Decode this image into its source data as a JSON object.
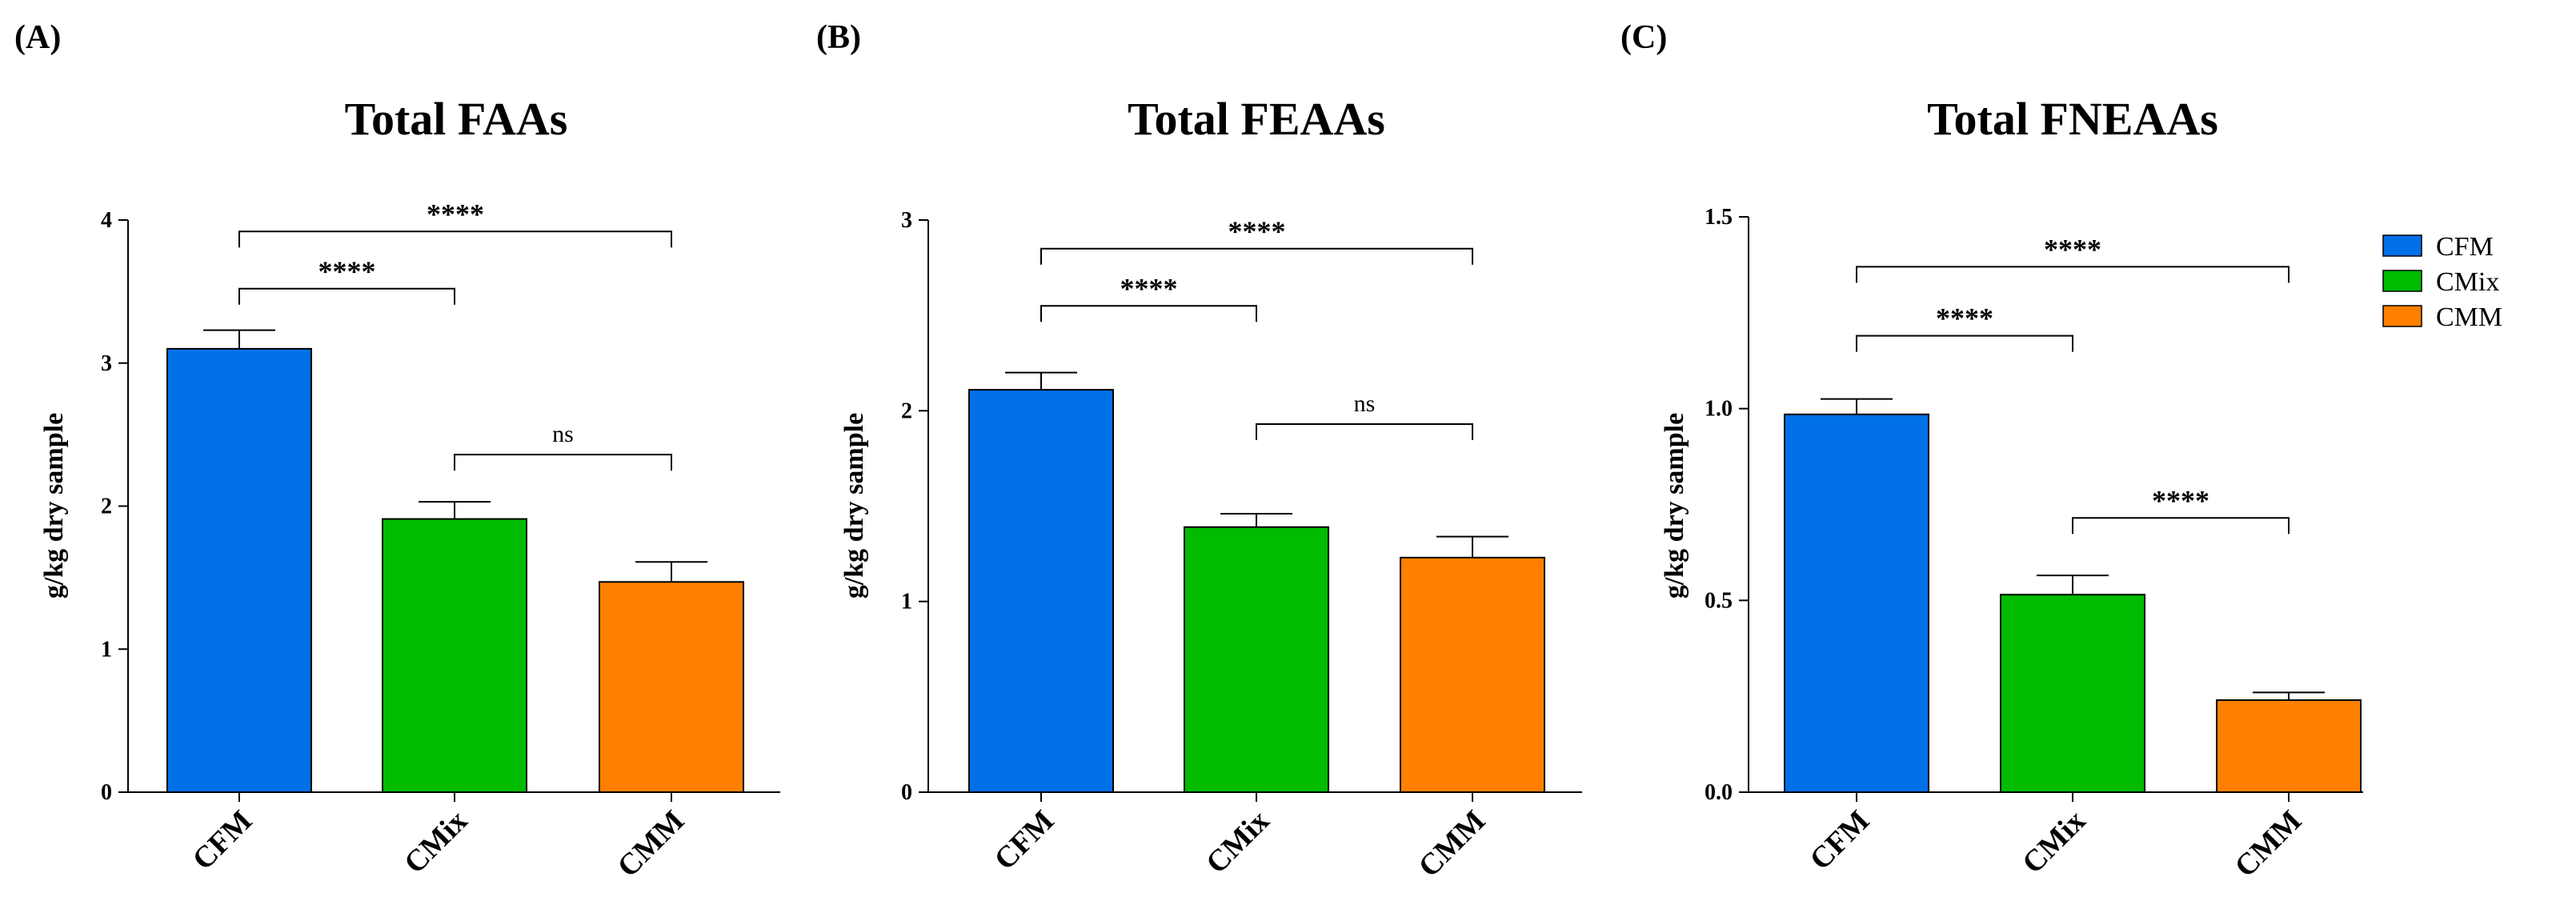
{
  "colors": {
    "CFM": "#0070e8",
    "CMix": "#00bb00",
    "CMM": "#ff8000",
    "axis": "#000000"
  },
  "legend": {
    "items": [
      {
        "label": "CFM",
        "color": "#0070e8"
      },
      {
        "label": "CMix",
        "color": "#00bb00"
      },
      {
        "label": "CMM",
        "color": "#ff8000"
      }
    ]
  },
  "chart_data": [
    {
      "type": "bar",
      "panel_label": "(A)",
      "title": "Total FAAs",
      "ylabel": "g/kg dry sample",
      "xlabel": "",
      "categories": [
        "CFM",
        "CMix",
        "CMM"
      ],
      "values": [
        3.1,
        1.91,
        1.47
      ],
      "errors": [
        0.13,
        0.12,
        0.14
      ],
      "ylim": [
        0,
        4
      ],
      "yticks": [
        "0",
        "1",
        "2",
        "3",
        "4"
      ],
      "ytick_values": [
        0,
        1,
        2,
        3,
        4
      ],
      "significance": [
        {
          "from": 0,
          "to": 2,
          "label": "****",
          "y": 3.92
        },
        {
          "from": 0,
          "to": 1,
          "label": "****",
          "y": 3.52
        },
        {
          "from": 1,
          "to": 2,
          "label": "ns",
          "y": 2.36
        }
      ]
    },
    {
      "type": "bar",
      "panel_label": "(B)",
      "title": "Total FEAAs",
      "ylabel": "g/kg dry sample",
      "xlabel": "",
      "categories": [
        "CFM",
        "CMix",
        "CMM"
      ],
      "values": [
        2.11,
        1.39,
        1.23
      ],
      "errors": [
        0.09,
        0.07,
        0.11
      ],
      "ylim": [
        0,
        3
      ],
      "yticks": [
        "0",
        "1",
        "2",
        "3"
      ],
      "ytick_values": [
        0,
        1,
        2,
        3
      ],
      "significance": [
        {
          "from": 0,
          "to": 2,
          "label": "****",
          "y": 2.85
        },
        {
          "from": 0,
          "to": 1,
          "label": "****",
          "y": 2.55
        },
        {
          "from": 1,
          "to": 2,
          "label": "ns",
          "y": 1.93
        }
      ]
    },
    {
      "type": "bar",
      "panel_label": "(C)",
      "title": "Total FNEAAs",
      "ylabel": "g/kg dry sample",
      "xlabel": "",
      "categories": [
        "CFM",
        "CMix",
        "CMM"
      ],
      "values": [
        0.985,
        0.515,
        0.24
      ],
      "errors": [
        0.04,
        0.05,
        0.02
      ],
      "ylim": [
        0,
        1.5
      ],
      "yticks": [
        "0.0",
        "0.5",
        "1.0",
        "1.5"
      ],
      "ytick_values": [
        0,
        0.5,
        1.0,
        1.5
      ],
      "significance": [
        {
          "from": 0,
          "to": 2,
          "label": "****",
          "y": 1.37
        },
        {
          "from": 0,
          "to": 1,
          "label": "****",
          "y": 1.19
        },
        {
          "from": 1,
          "to": 2,
          "label": "****",
          "y": 0.715
        }
      ]
    }
  ]
}
